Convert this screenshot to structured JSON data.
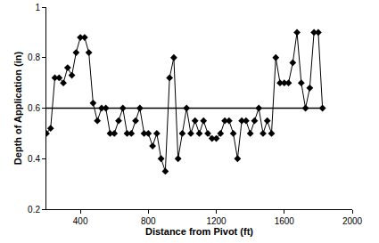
{
  "chart_data": {
    "type": "line",
    "x_label": "Distance from Pivot (ft)",
    "y_label": "Depth of Application (in)",
    "x": [
      200,
      225,
      250,
      275,
      300,
      325,
      350,
      375,
      400,
      425,
      450,
      475,
      500,
      525,
      550,
      575,
      600,
      625,
      650,
      675,
      700,
      725,
      750,
      775,
      800,
      825,
      850,
      875,
      900,
      925,
      950,
      975,
      1000,
      1025,
      1050,
      1075,
      1100,
      1125,
      1150,
      1175,
      1200,
      1225,
      1250,
      1275,
      1300,
      1325,
      1350,
      1375,
      1400,
      1425,
      1450,
      1475,
      1500,
      1525,
      1550,
      1575,
      1600,
      1625,
      1650,
      1675,
      1700,
      1725,
      1750,
      1775,
      1800,
      1825
    ],
    "values": [
      0.5,
      0.52,
      0.72,
      0.72,
      0.7,
      0.76,
      0.73,
      0.82,
      0.88,
      0.88,
      0.82,
      0.62,
      0.55,
      0.6,
      0.6,
      0.5,
      0.5,
      0.55,
      0.6,
      0.5,
      0.5,
      0.55,
      0.6,
      0.5,
      0.5,
      0.45,
      0.5,
      0.4,
      0.35,
      0.72,
      0.8,
      0.4,
      0.5,
      0.6,
      0.5,
      0.55,
      0.5,
      0.55,
      0.5,
      0.48,
      0.48,
      0.5,
      0.55,
      0.55,
      0.5,
      0.4,
      0.55,
      0.55,
      0.5,
      0.55,
      0.6,
      0.5,
      0.55,
      0.5,
      0.8,
      0.7,
      0.7,
      0.7,
      0.78,
      0.9,
      0.7,
      0.6,
      0.68,
      0.9,
      0.9,
      0.6
    ],
    "hline": 0.6,
    "color": "#000000",
    "marker": "diamond",
    "xlim": [
      200,
      2000
    ],
    "xticks": [
      400,
      800,
      1200,
      1600,
      2000
    ],
    "ylim": [
      0.2,
      1
    ],
    "yticks": [
      0.2,
      0.4,
      0.6,
      0.8,
      1
    ],
    "grid": false
  }
}
